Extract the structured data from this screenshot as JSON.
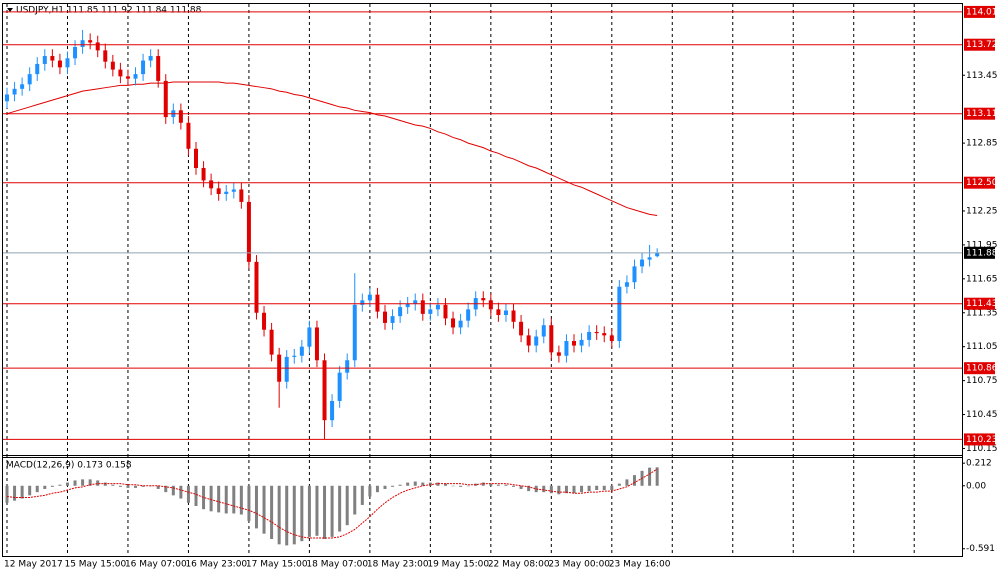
{
  "chart_data": [
    {
      "type": "candlestick",
      "title": "USDJPY,H1  111.85 111.92 111.84 111.88",
      "categories": [
        "12 May 2017",
        null,
        null,
        null,
        null,
        null,
        null,
        null,
        "15 May 15:00",
        null,
        null,
        null,
        null,
        null,
        null,
        null,
        "16 May 07:00",
        null,
        null,
        null,
        null,
        null,
        null,
        null,
        "16 May 23:00",
        null,
        null,
        null,
        null,
        null,
        null,
        null,
        "17 May 15:00",
        null,
        null,
        null,
        null,
        null,
        null,
        null,
        "18 May 07:00",
        null,
        null,
        null,
        null,
        null,
        null,
        null,
        "18 May 23:00",
        null,
        null,
        null,
        null,
        null,
        null,
        null,
        "19 May 15:00",
        null,
        null,
        null,
        null,
        null,
        null,
        null,
        "22 May 08:00",
        null,
        null,
        null,
        null,
        null,
        null,
        null,
        "23 May 00:00",
        null,
        null,
        null,
        null,
        null,
        null,
        null,
        "23 May 16:00",
        null,
        null,
        null,
        null,
        null,
        null
      ],
      "open": [
        113.22,
        113.28,
        113.33,
        113.37,
        113.46,
        113.55,
        113.62,
        113.58,
        113.52,
        113.6,
        113.7,
        113.76,
        113.74,
        113.67,
        113.57,
        113.5,
        113.44,
        113.42,
        113.46,
        113.58,
        113.62,
        113.4,
        113.08,
        113.14,
        113.03,
        112.8,
        112.63,
        112.52,
        112.45,
        112.4,
        112.42,
        112.44,
        112.33,
        111.8,
        111.35,
        111.2,
        110.98,
        110.74,
        110.96,
        110.97,
        111.05,
        111.22,
        110.93,
        110.4,
        110.57,
        110.82,
        110.93,
        111.42,
        111.46,
        111.51,
        111.36,
        111.26,
        111.32,
        111.4,
        111.43,
        111.46,
        111.34,
        111.38,
        111.42,
        111.3,
        111.22,
        111.28,
        111.38,
        111.48,
        111.46,
        111.38,
        111.33,
        111.37,
        111.27,
        111.15,
        111.06,
        111.14,
        111.24,
        111.0,
        110.97,
        111.1,
        111.06,
        111.11,
        111.18,
        111.17,
        111.15,
        111.1,
        111.58,
        111.62,
        111.76,
        111.82,
        111.85
      ],
      "high": [
        113.34,
        113.39,
        113.43,
        113.52,
        113.61,
        113.68,
        113.68,
        113.64,
        113.66,
        113.76,
        113.85,
        113.82,
        113.8,
        113.73,
        113.63,
        113.56,
        113.5,
        113.52,
        113.64,
        113.68,
        113.68,
        113.46,
        113.2,
        113.2,
        113.09,
        112.86,
        112.69,
        112.58,
        112.51,
        112.48,
        112.5,
        112.5,
        112.39,
        111.86,
        111.41,
        111.26,
        111.04,
        111.02,
        111.03,
        111.11,
        111.28,
        111.28,
        110.99,
        110.63,
        110.88,
        110.99,
        111.7,
        111.52,
        111.57,
        111.57,
        111.42,
        111.38,
        111.46,
        111.49,
        111.52,
        111.52,
        111.44,
        111.48,
        111.48,
        111.36,
        111.34,
        111.44,
        111.54,
        111.54,
        111.52,
        111.44,
        111.43,
        111.43,
        111.33,
        111.21,
        111.2,
        111.3,
        111.3,
        111.06,
        111.16,
        111.16,
        111.17,
        111.24,
        111.24,
        111.23,
        111.21,
        111.64,
        111.68,
        111.82,
        111.88,
        111.95,
        111.92
      ],
      "low": [
        113.16,
        113.22,
        113.27,
        113.31,
        113.4,
        113.49,
        113.52,
        113.46,
        113.46,
        113.54,
        113.64,
        113.68,
        113.61,
        113.51,
        113.44,
        113.38,
        113.36,
        113.36,
        113.4,
        113.52,
        113.34,
        113.02,
        113.02,
        112.97,
        112.74,
        112.57,
        112.46,
        112.39,
        112.34,
        112.34,
        112.36,
        112.27,
        111.74,
        111.29,
        111.14,
        110.92,
        110.51,
        110.68,
        110.9,
        110.91,
        110.99,
        110.87,
        110.23,
        110.34,
        110.51,
        110.76,
        110.87,
        111.36,
        111.4,
        111.3,
        111.2,
        111.2,
        111.26,
        111.34,
        111.37,
        111.28,
        111.28,
        111.32,
        111.24,
        111.16,
        111.16,
        111.22,
        111.32,
        111.4,
        111.32,
        111.27,
        111.27,
        111.21,
        111.09,
        111.0,
        111.0,
        111.08,
        110.94,
        110.91,
        110.91,
        111.0,
        111.0,
        111.05,
        111.11,
        111.09,
        111.04,
        111.04,
        111.52,
        111.56,
        111.7,
        111.76,
        111.84
      ],
      "close": [
        113.28,
        113.33,
        113.37,
        113.46,
        113.55,
        113.62,
        113.58,
        113.52,
        113.6,
        113.7,
        113.76,
        113.74,
        113.67,
        113.57,
        113.5,
        113.44,
        113.42,
        113.46,
        113.58,
        113.62,
        113.4,
        113.08,
        113.14,
        113.03,
        112.8,
        112.63,
        112.52,
        112.45,
        112.4,
        112.42,
        112.44,
        112.33,
        111.8,
        111.35,
        111.2,
        110.98,
        110.74,
        110.96,
        110.97,
        111.05,
        111.22,
        110.93,
        110.4,
        110.57,
        110.82,
        110.93,
        111.42,
        111.46,
        111.51,
        111.36,
        111.26,
        111.32,
        111.4,
        111.43,
        111.46,
        111.34,
        111.38,
        111.42,
        111.3,
        111.22,
        111.28,
        111.38,
        111.48,
        111.46,
        111.38,
        111.33,
        111.37,
        111.27,
        111.15,
        111.06,
        111.14,
        111.24,
        111.0,
        110.97,
        111.1,
        111.06,
        111.11,
        111.18,
        111.17,
        111.15,
        111.1,
        111.58,
        111.62,
        111.76,
        111.82,
        111.84,
        111.88
      ],
      "overlay": {
        "color": "#e00000",
        "values": [
          113.11,
          113.13,
          113.15,
          113.17,
          113.19,
          113.21,
          113.23,
          113.25,
          113.27,
          113.29,
          113.31,
          113.32,
          113.33,
          113.34,
          113.35,
          113.36,
          113.36,
          113.37,
          113.37,
          113.38,
          113.38,
          113.38,
          113.39,
          113.39,
          113.39,
          113.39,
          113.39,
          113.39,
          113.39,
          113.38,
          113.38,
          113.37,
          113.36,
          113.35,
          113.34,
          113.33,
          113.31,
          113.3,
          113.28,
          113.27,
          113.25,
          113.23,
          113.21,
          113.19,
          113.17,
          113.16,
          113.14,
          113.13,
          113.12,
          113.1,
          113.09,
          113.07,
          113.05,
          113.03,
          113.01,
          113.0,
          112.98,
          112.95,
          112.93,
          112.9,
          112.88,
          112.85,
          112.83,
          112.81,
          112.78,
          112.76,
          112.73,
          112.71,
          112.68,
          112.65,
          112.63,
          112.6,
          112.57,
          112.54,
          112.51,
          112.48,
          112.46,
          112.43,
          112.4,
          112.37,
          112.34,
          112.31,
          112.28,
          112.26,
          112.24,
          112.22,
          112.21
        ]
      },
      "up_color": "#1e90ff",
      "down_color": "#e00000",
      "level_color": "#e00000",
      "levels": [
        114.01,
        113.72,
        113.11,
        {
          "value": 112.5,
          "label": "112.50"
        },
        111.43,
        110.86,
        110.23
      ],
      "current": 111.88,
      "current_color": "#8fa3b5",
      "ylim": [
        110.11,
        114.08
      ],
      "yticks": [
        110.15,
        110.45,
        110.75,
        111.05,
        111.35,
        111.65,
        111.95,
        112.25,
        112.85,
        113.45
      ]
    },
    {
      "type": "macd",
      "label": "MACD(12,26,9) 0.173 0.158",
      "histogram": {
        "color": "#808080",
        "values": [
          -0.16,
          -0.14,
          -0.12,
          -0.09,
          -0.06,
          -0.03,
          -0.01,
          0.01,
          0.03,
          0.05,
          0.06,
          0.06,
          0.05,
          0.03,
          0.01,
          -0.01,
          -0.02,
          -0.02,
          -0.01,
          0.0,
          -0.03,
          -0.06,
          -0.09,
          -0.12,
          -0.16,
          -0.19,
          -0.22,
          -0.24,
          -0.25,
          -0.26,
          -0.26,
          -0.27,
          -0.33,
          -0.4,
          -0.45,
          -0.5,
          -0.55,
          -0.56,
          -0.55,
          -0.52,
          -0.48,
          -0.47,
          -0.5,
          -0.48,
          -0.43,
          -0.37,
          -0.27,
          -0.18,
          -0.1,
          -0.06,
          -0.03,
          -0.01,
          0.01,
          0.03,
          0.04,
          0.03,
          0.03,
          0.03,
          0.02,
          0.0,
          -0.01,
          0.0,
          0.02,
          0.03,
          0.02,
          0.01,
          0.01,
          -0.01,
          -0.03,
          -0.05,
          -0.06,
          -0.06,
          -0.07,
          -0.08,
          -0.07,
          -0.07,
          -0.06,
          -0.05,
          -0.04,
          -0.04,
          -0.04,
          0.02,
          0.06,
          0.1,
          0.14,
          0.17,
          0.173
        ]
      },
      "signal": {
        "color": "#e00000",
        "values": [
          -0.1,
          -0.11,
          -0.11,
          -0.11,
          -0.1,
          -0.09,
          -0.07,
          -0.06,
          -0.04,
          -0.02,
          -0.01,
          0.01,
          0.02,
          0.02,
          0.02,
          0.02,
          0.01,
          0.01,
          0.0,
          0.0,
          0.0,
          -0.01,
          -0.02,
          -0.04,
          -0.06,
          -0.08,
          -0.11,
          -0.13,
          -0.15,
          -0.17,
          -0.19,
          -0.21,
          -0.23,
          -0.26,
          -0.3,
          -0.34,
          -0.39,
          -0.43,
          -0.46,
          -0.48,
          -0.49,
          -0.49,
          -0.49,
          -0.49,
          -0.48,
          -0.45,
          -0.41,
          -0.35,
          -0.29,
          -0.22,
          -0.16,
          -0.11,
          -0.07,
          -0.04,
          -0.02,
          0.0,
          0.01,
          0.02,
          0.02,
          0.02,
          0.02,
          0.01,
          0.01,
          0.02,
          0.02,
          0.02,
          0.02,
          0.01,
          0.0,
          -0.01,
          -0.03,
          -0.04,
          -0.05,
          -0.06,
          -0.06,
          -0.07,
          -0.07,
          -0.06,
          -0.06,
          -0.05,
          -0.05,
          -0.03,
          -0.01,
          0.03,
          0.07,
          0.11,
          0.158
        ]
      },
      "ylim": [
        -0.65,
        0.27
      ],
      "yticks": [
        0.212,
        {
          "value": 0,
          "label": "0.00"
        },
        -0.591
      ]
    }
  ]
}
